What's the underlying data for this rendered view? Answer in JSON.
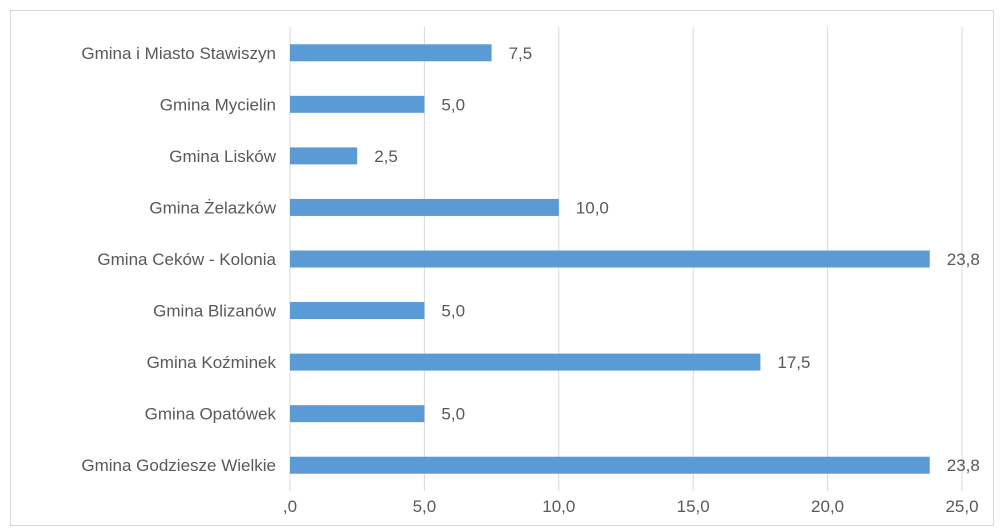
{
  "chart_data": {
    "type": "bar",
    "orientation": "horizontal",
    "categories": [
      "Gmina i Miasto Stawiszyn",
      "Gmina Mycielin",
      "Gmina Lisków",
      "Gmina Żelazków",
      "Gmina Ceków - Kolonia",
      "Gmina Blizanów",
      "Gmina Koźminek",
      "Gmina Opatówek",
      "Gmina Godziesze Wielkie"
    ],
    "values": [
      7.5,
      5.0,
      2.5,
      10.0,
      23.8,
      5.0,
      17.5,
      5.0,
      23.8
    ],
    "data_labels": [
      "7,5",
      "5,0",
      "2,5",
      "10,0",
      "23,8",
      "5,0",
      "17,5",
      "5,0",
      "23,8"
    ],
    "xlim": [
      0,
      25
    ],
    "x_ticks": [
      0,
      5,
      10,
      15,
      20,
      25
    ],
    "x_tick_labels": [
      ",0",
      "5,0",
      "10,0",
      "15,0",
      "20,0",
      "25,0"
    ],
    "title": "",
    "xlabel": "",
    "ylabel": "",
    "grid": "vertical",
    "legend": "none",
    "colors": {
      "bar": "#5b9bd5",
      "grid": "#d9d9d9",
      "text": "#595959"
    }
  }
}
